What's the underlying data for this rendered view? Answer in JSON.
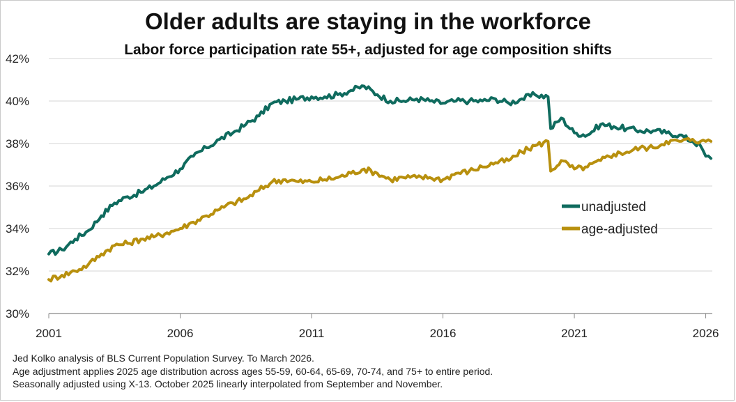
{
  "title": "Older adults are staying in the workforce",
  "subtitle": "Labor force participation rate 55+, adjusted for age composition shifts",
  "footnotes": [
    "Jed Kolko analysis of BLS Current Population Survey. To March 2026.",
    "Age adjustment applies 2025 age distribution across ages 55-59, 60-64, 65-69, 70-74, and 75+ to entire period.",
    "Seasonally adjusted using X-13. October 2025 linearly interpolated from September and November."
  ],
  "colors": {
    "unadjusted": "#0f6b5e",
    "age_adjusted": "#b8900e",
    "grid": "#d6d6d6",
    "axis": "#888888"
  },
  "chart_data": {
    "type": "line",
    "xlabel": "",
    "ylabel": "",
    "xlim": [
      2001,
      2026.25
    ],
    "ylim": [
      30,
      42
    ],
    "x_ticks": [
      2001,
      2006,
      2011,
      2016,
      2021,
      2026
    ],
    "x_tick_labels": [
      "2001",
      "2006",
      "2011",
      "2016",
      "2021",
      "2026"
    ],
    "y_ticks": [
      30,
      32,
      34,
      36,
      38,
      40,
      42
    ],
    "y_tick_labels": [
      "30%",
      "32%",
      "34%",
      "36%",
      "38%",
      "40%",
      "42%"
    ],
    "grid": "horizontal",
    "legend_position": "right",
    "series": [
      {
        "name": "unadjusted",
        "color": "#0f6b5e",
        "points": [
          [
            2001.0,
            32.8
          ],
          [
            2001.5,
            33.0
          ],
          [
            2002.0,
            33.5
          ],
          [
            2002.5,
            33.9
          ],
          [
            2003.0,
            34.6
          ],
          [
            2003.5,
            35.2
          ],
          [
            2004.0,
            35.5
          ],
          [
            2004.5,
            35.7
          ],
          [
            2005.0,
            36.0
          ],
          [
            2005.5,
            36.4
          ],
          [
            2006.0,
            36.8
          ],
          [
            2006.5,
            37.4
          ],
          [
            2007.0,
            37.8
          ],
          [
            2007.5,
            38.2
          ],
          [
            2008.0,
            38.5
          ],
          [
            2008.5,
            38.9
          ],
          [
            2009.0,
            39.3
          ],
          [
            2009.5,
            39.9
          ],
          [
            2010.0,
            40.0
          ],
          [
            2010.5,
            40.1
          ],
          [
            2011.0,
            40.2
          ],
          [
            2011.5,
            40.2
          ],
          [
            2012.0,
            40.3
          ],
          [
            2012.5,
            40.5
          ],
          [
            2013.0,
            40.7
          ],
          [
            2013.5,
            40.3
          ],
          [
            2014.0,
            40.0
          ],
          [
            2014.5,
            40.0
          ],
          [
            2015.0,
            40.1
          ],
          [
            2015.5,
            40.0
          ],
          [
            2016.0,
            39.9
          ],
          [
            2016.5,
            40.0
          ],
          [
            2017.0,
            40.0
          ],
          [
            2017.5,
            40.0
          ],
          [
            2018.0,
            40.1
          ],
          [
            2018.5,
            39.9
          ],
          [
            2019.0,
            40.1
          ],
          [
            2019.5,
            40.3
          ],
          [
            2020.0,
            40.2
          ],
          [
            2020.1,
            38.7
          ],
          [
            2020.5,
            39.2
          ],
          [
            2021.0,
            38.5
          ],
          [
            2021.5,
            38.4
          ],
          [
            2022.0,
            38.9
          ],
          [
            2022.5,
            38.8
          ],
          [
            2023.0,
            38.7
          ],
          [
            2023.5,
            38.6
          ],
          [
            2024.0,
            38.6
          ],
          [
            2024.5,
            38.5
          ],
          [
            2025.0,
            38.4
          ],
          [
            2025.5,
            38.1
          ],
          [
            2025.8,
            37.9
          ],
          [
            2026.0,
            37.4
          ],
          [
            2026.2,
            37.3
          ]
        ]
      },
      {
        "name": "age-adjusted",
        "color": "#b8900e",
        "points": [
          [
            2001.0,
            31.6
          ],
          [
            2001.5,
            31.8
          ],
          [
            2002.0,
            32.0
          ],
          [
            2002.5,
            32.3
          ],
          [
            2003.0,
            32.8
          ],
          [
            2003.5,
            33.2
          ],
          [
            2004.0,
            33.3
          ],
          [
            2004.5,
            33.5
          ],
          [
            2005.0,
            33.6
          ],
          [
            2005.5,
            33.8
          ],
          [
            2006.0,
            34.0
          ],
          [
            2006.5,
            34.3
          ],
          [
            2007.0,
            34.6
          ],
          [
            2007.5,
            34.9
          ],
          [
            2008.0,
            35.2
          ],
          [
            2008.5,
            35.4
          ],
          [
            2009.0,
            35.8
          ],
          [
            2009.5,
            36.2
          ],
          [
            2010.0,
            36.3
          ],
          [
            2010.5,
            36.2
          ],
          [
            2011.0,
            36.2
          ],
          [
            2011.5,
            36.3
          ],
          [
            2012.0,
            36.4
          ],
          [
            2012.5,
            36.6
          ],
          [
            2013.0,
            36.8
          ],
          [
            2013.5,
            36.6
          ],
          [
            2014.0,
            36.3
          ],
          [
            2014.5,
            36.4
          ],
          [
            2015.0,
            36.4
          ],
          [
            2015.5,
            36.4
          ],
          [
            2016.0,
            36.3
          ],
          [
            2016.5,
            36.6
          ],
          [
            2017.0,
            36.7
          ],
          [
            2017.5,
            36.9
          ],
          [
            2018.0,
            37.1
          ],
          [
            2018.5,
            37.2
          ],
          [
            2019.0,
            37.6
          ],
          [
            2019.5,
            37.9
          ],
          [
            2020.0,
            38.1
          ],
          [
            2020.1,
            36.7
          ],
          [
            2020.5,
            37.2
          ],
          [
            2021.0,
            36.8
          ],
          [
            2021.5,
            36.9
          ],
          [
            2022.0,
            37.2
          ],
          [
            2022.5,
            37.5
          ],
          [
            2023.0,
            37.6
          ],
          [
            2023.5,
            37.8
          ],
          [
            2024.0,
            37.8
          ],
          [
            2024.5,
            38.1
          ],
          [
            2025.0,
            38.1
          ],
          [
            2025.5,
            38.2
          ],
          [
            2025.8,
            38.1
          ],
          [
            2026.0,
            38.1
          ],
          [
            2026.2,
            38.1
          ]
        ]
      }
    ]
  }
}
